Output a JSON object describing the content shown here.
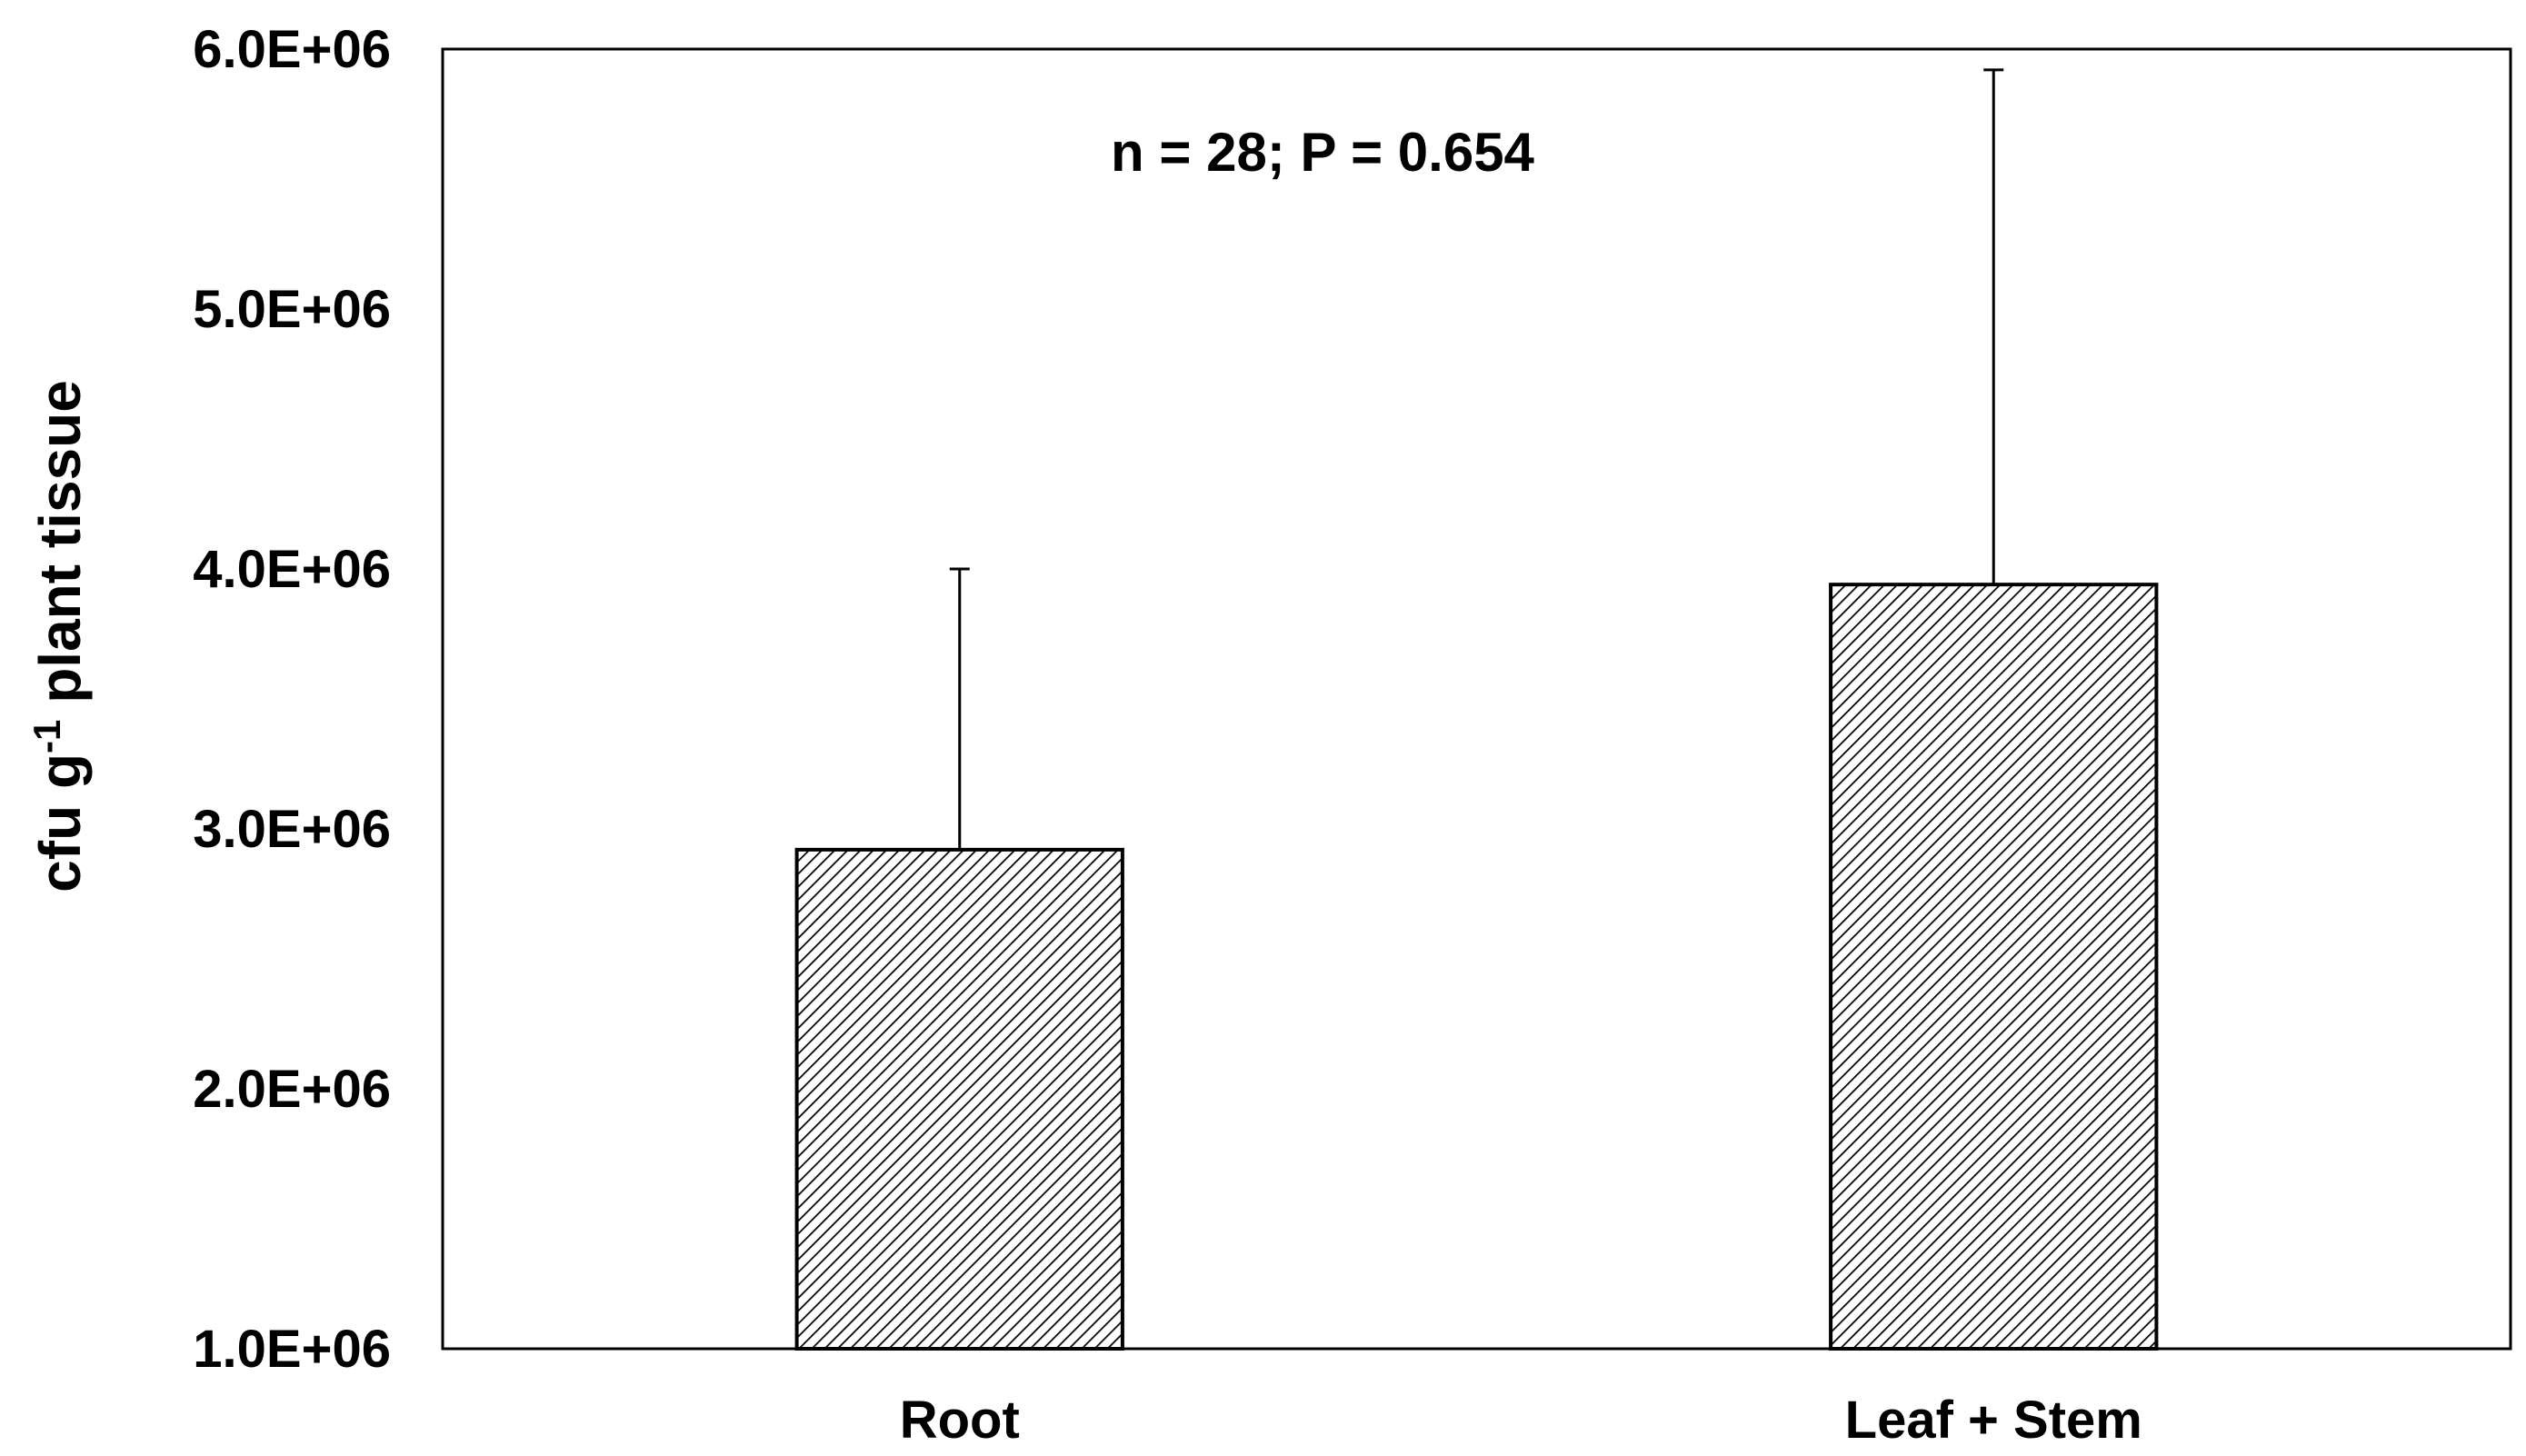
{
  "chart_data": {
    "type": "bar",
    "title": "",
    "xlabel": "",
    "ylabel": {
      "prefix": "cfu g",
      "superscript": "-1",
      "suffix": " plant tissue"
    },
    "categories": [
      "Root",
      "Leaf + Stem"
    ],
    "series": [
      {
        "values": [
          2920000,
          3940000
        ],
        "error_plus": [
          1080000,
          1980000
        ]
      }
    ],
    "ylim": [
      1000000,
      6000000
    ],
    "yticks": [
      1000000,
      2000000,
      3000000,
      4000000,
      5000000,
      6000000
    ],
    "ytick_labels": [
      "1.0E+06",
      "2.0E+06",
      "3.0E+06",
      "4.0E+06",
      "5.0E+06",
      "6.0E+06"
    ],
    "annotation": "n = 28; P = 0.654",
    "grid": false,
    "legend": "none",
    "bar_fill": "diagonal-hatch",
    "colors": {
      "bar_stroke": "#000000",
      "hatch": "#000000",
      "axis": "#000000"
    }
  }
}
